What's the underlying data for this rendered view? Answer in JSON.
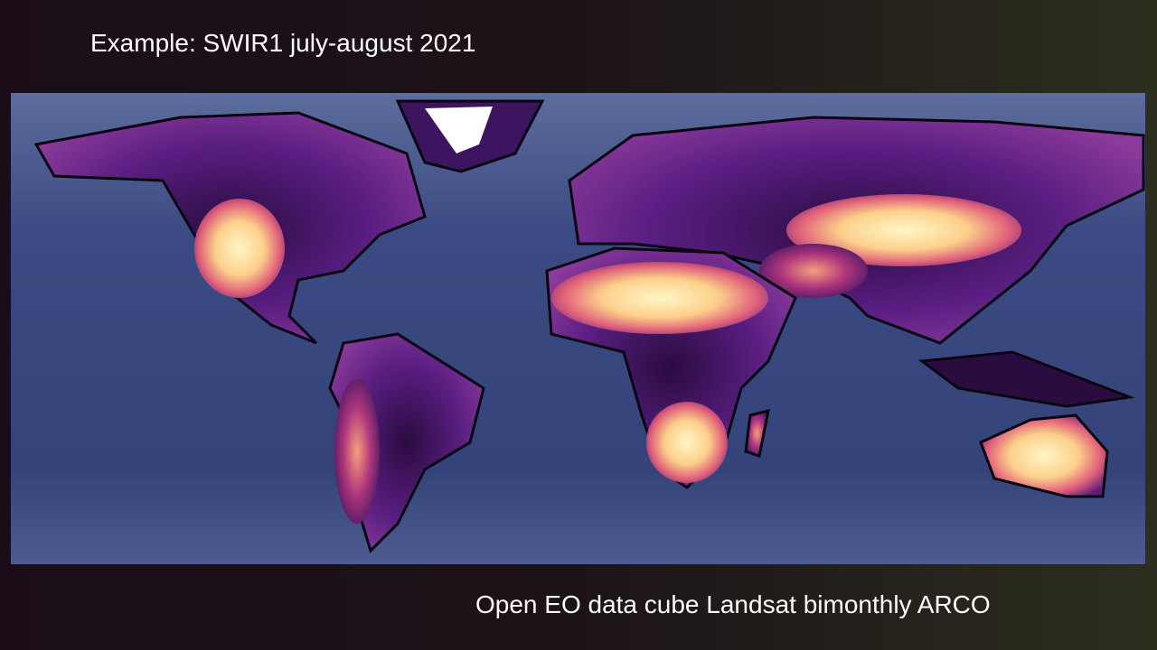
{
  "title": "Example: SWIR1 july-august 2021",
  "caption": "Open EO data cube Landsat bimonthly ARCO"
}
